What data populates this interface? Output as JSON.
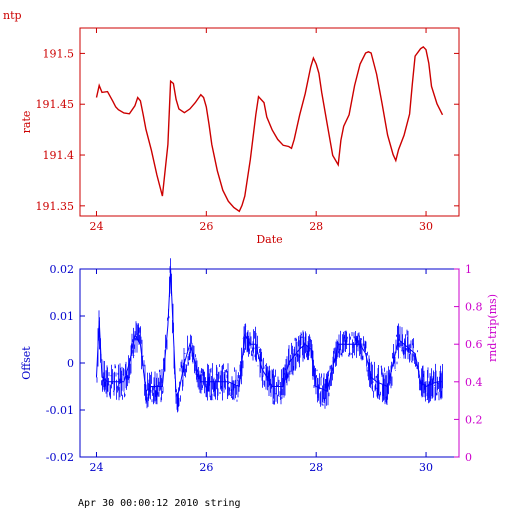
{
  "page_label": "ntp",
  "footer_text": "Apr 30 00:00:12 2010 string",
  "colors": {
    "top": "#cc0000",
    "bottom": "#0000ff",
    "right_axis": "#cc00cc",
    "bottom_text": "#0000cc"
  },
  "chart_data": [
    {
      "type": "line",
      "xlabel": "Date",
      "ylabel": "rate",
      "xlim": [
        23.7,
        30.6
      ],
      "ylim": [
        191.34,
        191.525
      ],
      "x_ticks": [
        24,
        26,
        28,
        30
      ],
      "y_ticks": [
        191.35,
        191.4,
        191.45,
        191.5
      ],
      "x_tick_labels": [
        "24",
        "26",
        "28",
        "30"
      ],
      "y_tick_labels": [
        "191.35",
        "191.4",
        "191.45",
        "191.5"
      ],
      "series": [
        {
          "x": [
            24.0,
            24.05,
            24.1,
            24.2,
            24.3,
            24.35,
            24.4,
            24.5,
            24.6,
            24.7,
            24.75,
            24.8,
            24.85,
            24.9,
            25.0,
            25.1,
            25.2,
            25.3,
            25.35,
            25.4,
            25.45,
            25.5,
            25.6,
            25.7,
            25.8,
            25.9,
            25.95,
            26.0,
            26.05,
            26.1,
            26.2,
            26.3,
            26.4,
            26.5,
            26.6,
            26.65,
            26.7,
            26.8,
            26.9,
            26.95,
            27.05,
            27.1,
            27.2,
            27.3,
            27.4,
            27.5,
            27.55,
            27.6,
            27.7,
            27.8,
            27.9,
            27.95,
            28.0,
            28.05,
            28.1,
            28.2,
            28.3,
            28.4,
            28.45,
            28.5,
            28.6,
            28.7,
            28.8,
            28.9,
            28.95,
            29.0,
            29.1,
            29.2,
            29.3,
            29.4,
            29.45,
            29.5,
            29.6,
            29.7,
            29.75,
            29.8,
            29.9,
            29.95,
            30.0,
            30.05,
            30.1,
            30.2,
            30.3
          ],
          "y": [
            191.457,
            191.468,
            191.462,
            191.462,
            191.453,
            191.447,
            191.445,
            191.441,
            191.441,
            191.448,
            191.457,
            191.453,
            191.44,
            191.425,
            191.405,
            191.38,
            191.36,
            191.41,
            191.473,
            191.47,
            191.455,
            191.445,
            191.442,
            191.445,
            191.452,
            191.459,
            191.457,
            191.447,
            191.43,
            191.41,
            191.385,
            191.365,
            191.355,
            191.348,
            191.345,
            191.35,
            191.36,
            191.395,
            191.44,
            191.457,
            191.452,
            191.437,
            191.425,
            191.415,
            191.41,
            191.408,
            191.407,
            191.415,
            191.44,
            191.46,
            191.487,
            191.495,
            191.49,
            191.48,
            191.462,
            191.43,
            191.4,
            191.39,
            191.415,
            191.428,
            191.44,
            191.468,
            191.49,
            191.5,
            191.502,
            191.5,
            191.48,
            191.45,
            191.42,
            191.4,
            191.395,
            191.405,
            191.42,
            191.44,
            191.47,
            191.497,
            191.505,
            191.506,
            191.504,
            191.49,
            191.468,
            191.45,
            191.44
          ]
        }
      ]
    },
    {
      "type": "line",
      "xlabel": "",
      "ylabel": "Offset",
      "y2label": "rnd-trip(ms)",
      "xlim": [
        23.7,
        30.6
      ],
      "ylim": [
        -0.02,
        0.02
      ],
      "y2lim": [
        0,
        1
      ],
      "x_ticks": [
        24,
        26,
        28,
        30
      ],
      "y_ticks": [
        -0.02,
        -0.01,
        0,
        0.01,
        0.02
      ],
      "y2_ticks": [
        0,
        0.2,
        0.4,
        0.6,
        0.8,
        1
      ],
      "x_tick_labels": [
        "24",
        "26",
        "28",
        "30"
      ],
      "y_tick_labels": [
        "-0.02",
        "-0.01",
        "0",
        "0.01",
        "0.02"
      ],
      "y2_tick_labels": [
        "0",
        "0.2",
        "0.4",
        "0.6",
        "0.8",
        "1"
      ],
      "series": [
        {
          "x": [
            24.0,
            24.05,
            24.1,
            24.2,
            24.3,
            24.5,
            24.6,
            24.7,
            24.8,
            24.9,
            25.0,
            25.1,
            25.2,
            25.3,
            25.35,
            25.4,
            25.45,
            25.5,
            25.6,
            25.7,
            25.9,
            26.0,
            26.2,
            26.4,
            26.6,
            26.7,
            26.8,
            26.9,
            27.0,
            27.2,
            27.4,
            27.5,
            27.7,
            27.8,
            27.9,
            28.0,
            28.2,
            28.4,
            28.6,
            28.8,
            28.9,
            29.0,
            29.1,
            29.3,
            29.5,
            29.6,
            29.8,
            29.9,
            30.0,
            30.2,
            30.3
          ],
          "y": [
            -0.003,
            0.009,
            -0.003,
            -0.004,
            -0.004,
            -0.004,
            0.0,
            0.006,
            0.004,
            -0.006,
            -0.005,
            -0.005,
            -0.005,
            0.008,
            0.02,
            0.006,
            -0.007,
            -0.006,
            0.0,
            0.004,
            -0.004,
            -0.004,
            -0.004,
            -0.004,
            -0.005,
            0.006,
            0.004,
            0.004,
            -0.001,
            -0.005,
            -0.005,
            0.0,
            0.003,
            0.004,
            0.003,
            -0.005,
            -0.006,
            0.004,
            0.004,
            0.004,
            0.002,
            -0.003,
            -0.004,
            -0.005,
            0.005,
            0.004,
            0.002,
            -0.004,
            -0.005,
            -0.004,
            -0.004
          ],
          "band": [
            0.004,
            0.006,
            0.004,
            0.004,
            0.004,
            0.004,
            0.004,
            0.004,
            0.004,
            0.004,
            0.004,
            0.004,
            0.004,
            0.004,
            0.004,
            0.005,
            0.004,
            0.004,
            0.004,
            0.004,
            0.003,
            0.004,
            0.004,
            0.004,
            0.004,
            0.004,
            0.003,
            0.004,
            0.004,
            0.004,
            0.004,
            0.004,
            0.004,
            0.003,
            0.003,
            0.004,
            0.004,
            0.003,
            0.003,
            0.003,
            0.003,
            0.004,
            0.004,
            0.004,
            0.004,
            0.004,
            0.003,
            0.004,
            0.004,
            0.004,
            0.004
          ]
        }
      ]
    }
  ]
}
